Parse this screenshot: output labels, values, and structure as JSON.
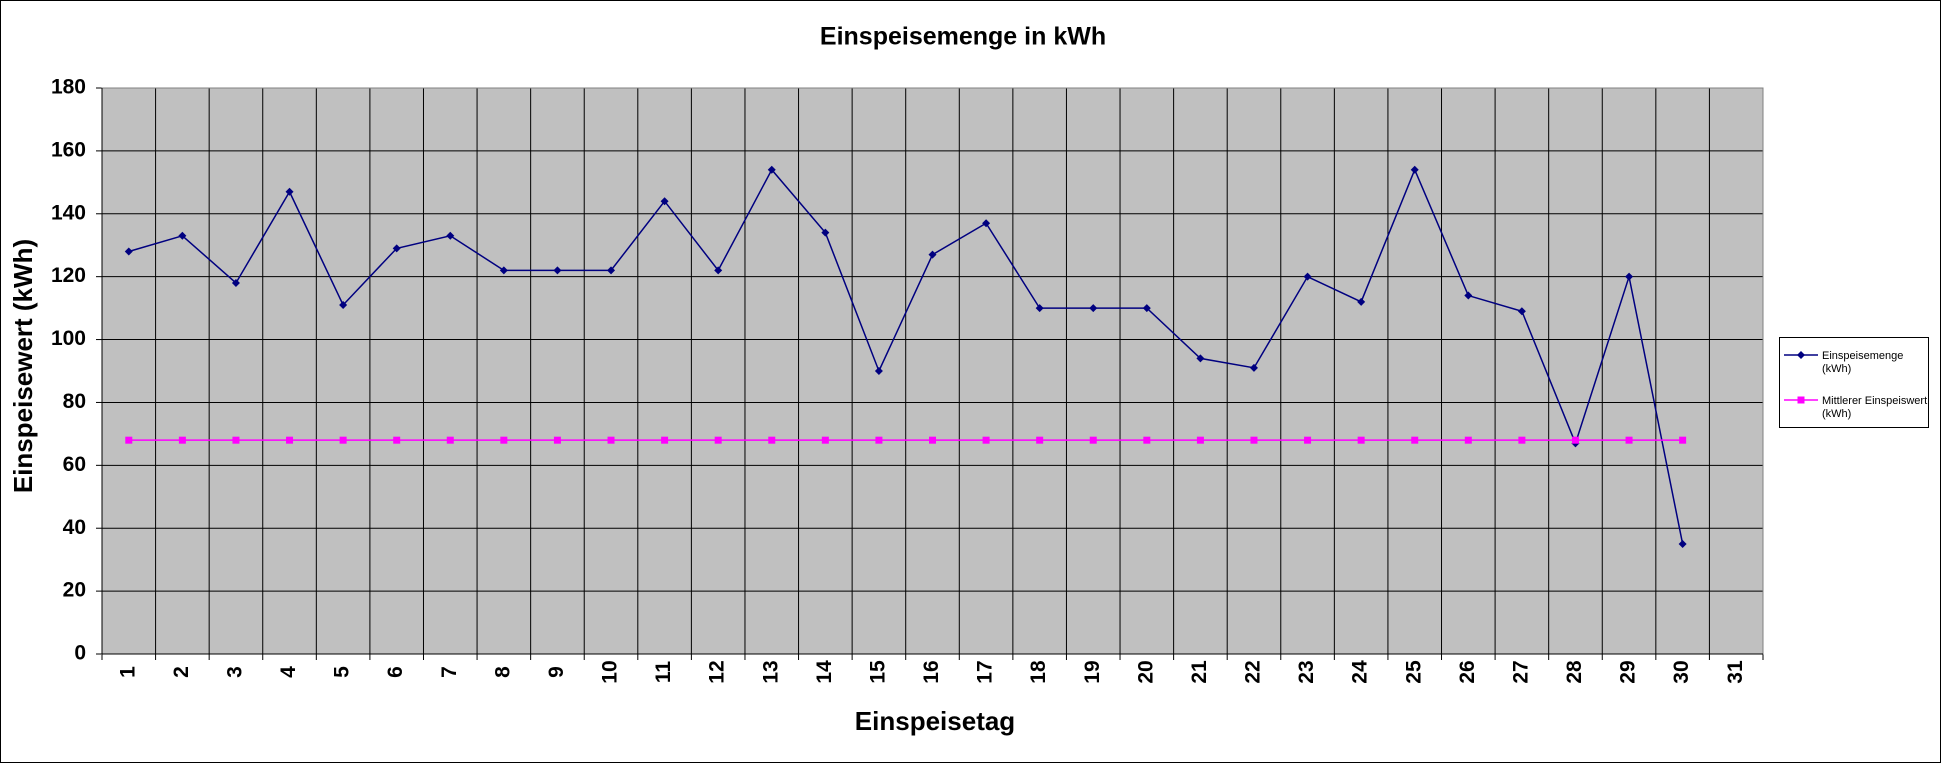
{
  "chart_data": {
    "type": "line",
    "title": "Einspeisemenge in kWh",
    "xlabel": "Einspeisetag",
    "ylabel": "Einspeisewert  (kWh)",
    "categories": [
      "1",
      "2",
      "3",
      "4",
      "5",
      "6",
      "7",
      "8",
      "9",
      "10",
      "11",
      "12",
      "13",
      "14",
      "15",
      "16",
      "17",
      "18",
      "19",
      "20",
      "21",
      "22",
      "23",
      "24",
      "25",
      "26",
      "27",
      "28",
      "29",
      "30",
      "31"
    ],
    "series": [
      {
        "name": "Einspeisemenge (kWh)",
        "color": "#000080",
        "marker": "diamond",
        "values": [
          128,
          133,
          118,
          147,
          111,
          129,
          133,
          122,
          122,
          122,
          144,
          122,
          154,
          134,
          90,
          127,
          137,
          110,
          110,
          110,
          94,
          91,
          120,
          112,
          154,
          114,
          109,
          67,
          120,
          35,
          null
        ]
      },
      {
        "name": "Mittlerer Einspeiswert (kWh)",
        "color": "#ff00ff",
        "marker": "square",
        "values": [
          68,
          68,
          68,
          68,
          68,
          68,
          68,
          68,
          68,
          68,
          68,
          68,
          68,
          68,
          68,
          68,
          68,
          68,
          68,
          68,
          68,
          68,
          68,
          68,
          68,
          68,
          68,
          68,
          68,
          68,
          null
        ]
      }
    ],
    "ylim": [
      0,
      180
    ],
    "yticks": [
      0,
      20,
      40,
      60,
      80,
      100,
      120,
      140,
      160,
      180
    ],
    "grid": true,
    "legend": "right"
  }
}
